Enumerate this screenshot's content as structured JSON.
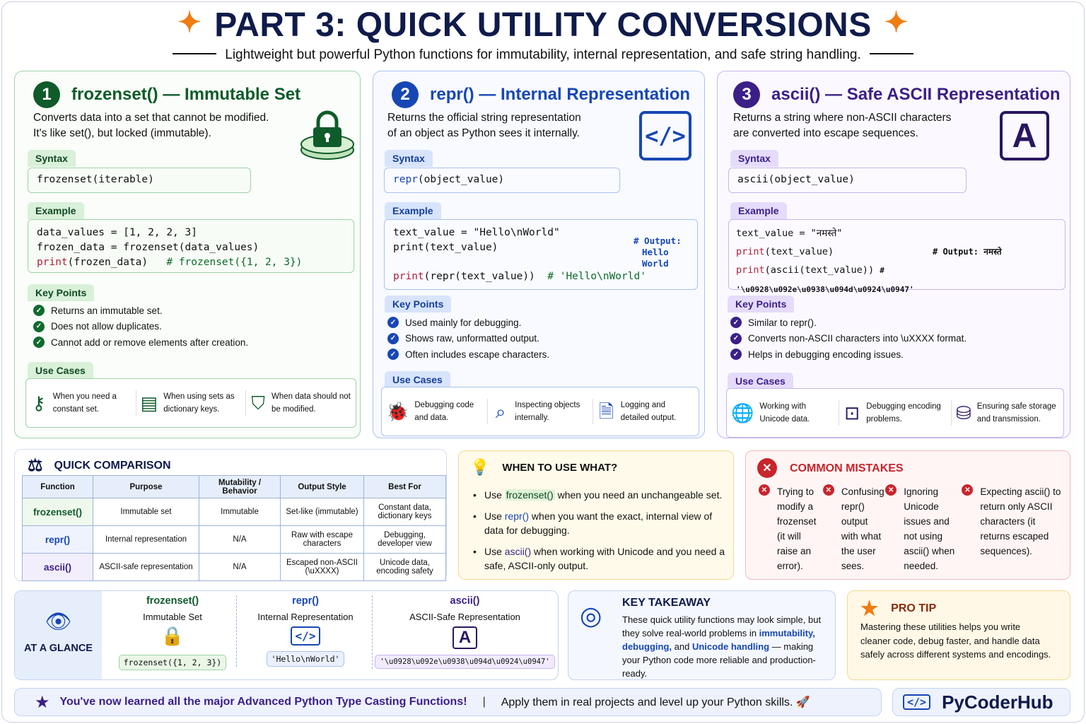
{
  "header": {
    "title": "PART 3: QUICK UTILITY CONVERSIONS",
    "subtitle": "Lightweight but powerful Python functions for immutability, internal representation, and safe string handling."
  },
  "colors": {
    "green": "#0f5b2a",
    "blue": "#1747b3",
    "purple": "#3b1f86",
    "orange": "#f07c12",
    "red": "#c8252c"
  },
  "cards": [
    {
      "number": "1",
      "title": "frozenset() — Immutable Set",
      "desc": [
        "Converts data into a set that cannot be modified.",
        "It's like set(), but locked (immutable)."
      ],
      "icon": "lock-icon",
      "syntax_label": "Syntax",
      "syntax": "frozenset(iterable)",
      "example_label": "Example",
      "example": [
        "data_values = [1, 2, 2, 3]",
        "frozen_data = frozenset(data_values)"
      ],
      "example_print": "print",
      "example_last": "(frozen_data)",
      "example_comment": "# frozenset({1, 2, 3})",
      "keypoints_label": "Key Points",
      "keypoints": [
        "Returns an immutable set.",
        "Does not allow duplicates.",
        "Cannot add or remove elements after creation."
      ],
      "usecases_label": "Use Cases",
      "usecases": [
        {
          "icon": "key-icon",
          "text": "When you need a constant set."
        },
        {
          "icon": "dictionary-icon",
          "text": "When using sets as dictionary keys."
        },
        {
          "icon": "shield-icon",
          "text": "When data should not be modified."
        }
      ]
    },
    {
      "number": "2",
      "title": "repr() — Internal Representation",
      "desc": [
        "Returns the official string representation",
        "of an object as Python sees it internally."
      ],
      "icon": "code-icon",
      "syntax_label": "Syntax",
      "syntax_kw": "repr",
      "syntax_rest": "(object_value)",
      "example_label": "Example",
      "example": [
        "text_value = \"Hello\\nWorld\"",
        "print(text_value)"
      ],
      "example_output": [
        "# Output:",
        "Hello",
        "World"
      ],
      "example_print": "print",
      "example_last": "(repr(text_value))",
      "example_comment": "# 'Hello\\nWorld'",
      "keypoints_label": "Key Points",
      "keypoints": [
        "Used mainly for debugging.",
        "Shows raw, unformatted output.",
        "Often includes escape characters."
      ],
      "usecases_label": "Use Cases",
      "usecases": [
        {
          "icon": "bug-icon",
          "text": "Debugging code and data."
        },
        {
          "icon": "magnifier-icon",
          "text": "Inspecting objects internally."
        },
        {
          "icon": "document-icon",
          "text": "Logging and detailed output."
        }
      ]
    },
    {
      "number": "3",
      "title": "ascii() — Safe ASCII Representation",
      "desc": [
        "Returns a string where non-ASCII characters",
        "are converted into escape sequences."
      ],
      "icon": "letter-a-icon",
      "icon_text": "A",
      "syntax_label": "Syntax",
      "syntax": "ascii(object_value)",
      "example_label": "Example",
      "example_first": "text_value = \"नमस्ते\"",
      "example_print": "print",
      "example_l2": "(text_value)",
      "example_c2": "# Output: नमस्ते",
      "example_l3": "(ascii(text_value))",
      "example_c3": "# '\\u0928\\u092e\\u0938\\u094d\\u0924\\u0947'",
      "keypoints_label": "Key Points",
      "keypoints": [
        "Similar to repr().",
        "Converts non-ASCII characters into \\uXXXX format.",
        "Helps in debugging encoding issues."
      ],
      "usecases_label": "Use Cases",
      "usecases": [
        {
          "icon": "globe-icon",
          "text": "Working with Unicode data."
        },
        {
          "icon": "terminal-icon",
          "text": "Debugging encoding problems."
        },
        {
          "icon": "database-icon",
          "text": "Ensuring safe storage and transmission."
        }
      ]
    }
  ],
  "comparison": {
    "title": "QUICK COMPARISON",
    "headers": [
      "Function",
      "Purpose",
      "Mutability / Behavior",
      "Output Style",
      "Best For"
    ],
    "rows": [
      [
        "frozenset()",
        "Immutable set",
        "Immutable",
        "Set-like (immutable)",
        "Constant data, dictionary keys"
      ],
      [
        "repr()",
        "Internal representation",
        "N/A",
        "Raw with escape characters",
        "Debugging, developer view"
      ],
      [
        "ascii()",
        "ASCII-safe representation",
        "N/A",
        "Escaped non-ASCII (\\uXXXX)",
        "Unicode data, encoding safety"
      ]
    ]
  },
  "when": {
    "title": "WHEN TO USE WHAT?",
    "items": [
      {
        "pre": "Use ",
        "code": "frozenset()",
        "post": " when you need an unchangeable set."
      },
      {
        "pre": "Use ",
        "code": "repr()",
        "post": " when you want the exact, internal view of data for debugging."
      },
      {
        "pre": "Use ",
        "code": "ascii()",
        "post": " when working with Unicode and you need a safe, ASCII-only output."
      }
    ]
  },
  "mistakes": {
    "title": "COMMON MISTAKES",
    "items": [
      "Trying to modify a frozenset (it will raise an error).",
      "Confusing repr() output with what the user sees.",
      "Ignoring Unicode issues and not using ascii() when needed.",
      "Expecting ascii() to return only ASCII characters (it returns escaped sequences)."
    ]
  },
  "glance": {
    "title": "AT A GLANCE",
    "items": [
      {
        "fn": "frozenset()",
        "sub": "Immutable Set",
        "code": "frozenset({1, 2, 3})"
      },
      {
        "fn": "repr()",
        "sub": "Internal Representation",
        "code": "'Hello\\nWorld'"
      },
      {
        "fn": "ascii()",
        "sub": "ASCII-Safe Representation",
        "code": "'\\u0928\\u092e\\u0938\\u094d\\u0924\\u0947'"
      }
    ]
  },
  "takeaway": {
    "title": "KEY TAKEAWAY",
    "pre": "These quick utility functions may look simple, but they solve real-world problems in ",
    "highlight": "immutability, debugging,",
    "mid": " and ",
    "highlight2": "Unicode handling",
    "post": " — making your Python code more reliable and production-ready."
  },
  "protip": {
    "title": "PRO TIP",
    "text": "Mastering these utilities helps you write cleaner code, debug faster, and handle data safely across different systems and encodings."
  },
  "footer": {
    "left": "You've now learned all the major Advanced Python Type Casting Functions!",
    "right": "Apply them in real projects and level up your Python skills. 🚀",
    "brand": "PyCoderHub"
  }
}
